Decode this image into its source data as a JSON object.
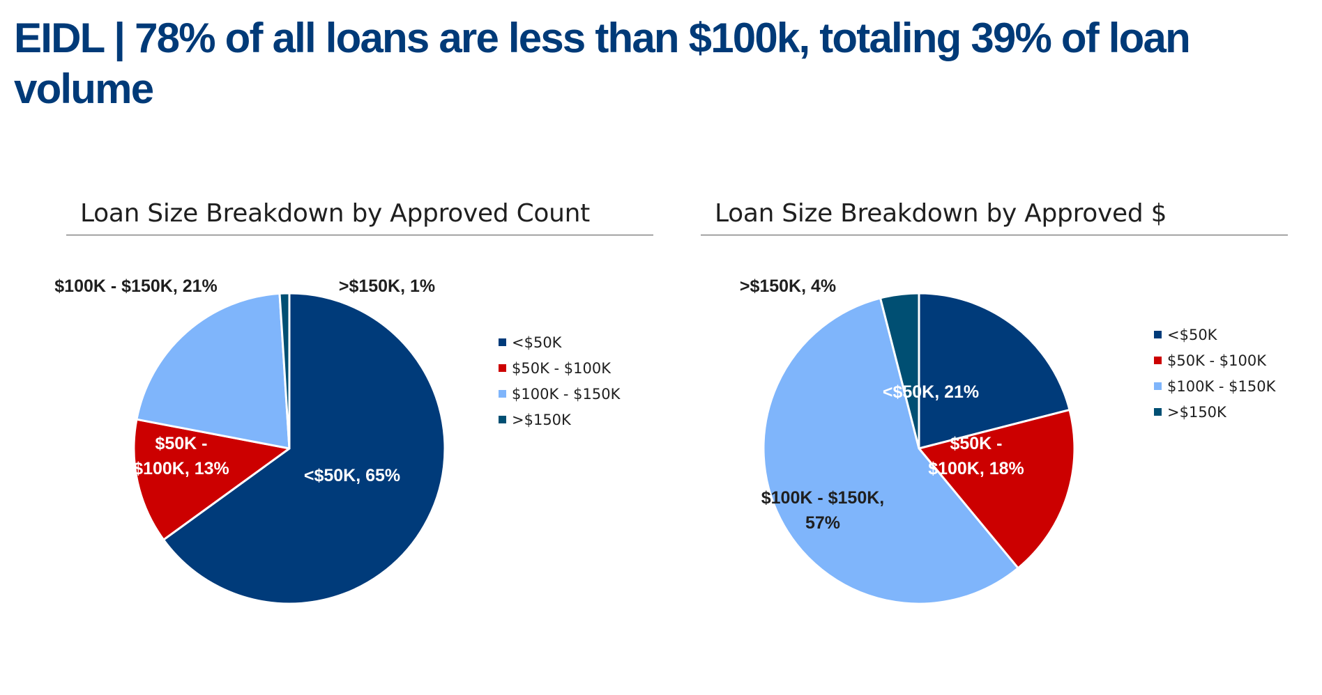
{
  "page": {
    "title": "EIDL | 78% of all loans are less than $100k, totaling 39% of loan volume"
  },
  "chart_data": [
    {
      "type": "pie",
      "title": "Loan Size Breakdown by Approved Count",
      "categories": [
        "<$50K",
        "$50K - $100K",
        "$100K - $150K",
        ">$150K"
      ],
      "values": [
        65,
        13,
        21,
        1
      ],
      "unit": "%",
      "data_labels": [
        {
          "lines": [
            "<$50K, 65%"
          ],
          "color": "#ffffff"
        },
        {
          "lines": [
            "$50K -",
            "$100K, 13%"
          ],
          "color": "#ffffff"
        },
        {
          "lines": [
            "$100K - $150K, 21%"
          ],
          "color": "#1f1f1f"
        },
        {
          "lines": [
            ">$150K, 1%"
          ],
          "color": "#1f1f1f"
        }
      ],
      "colors": [
        "#003b7a",
        "#cc0000",
        "#7fb5fb",
        "#004f73"
      ],
      "legend": "right"
    },
    {
      "type": "pie",
      "title": "Loan Size Breakdown by Approved $",
      "categories": [
        "<$50K",
        "$50K - $100K",
        "$100K - $150K",
        ">$150K"
      ],
      "values": [
        21,
        18,
        57,
        4
      ],
      "unit": "%",
      "data_labels": [
        {
          "lines": [
            "<$50K, 21%"
          ],
          "color": "#ffffff"
        },
        {
          "lines": [
            "$50K -",
            "$100K, 18%"
          ],
          "color": "#ffffff"
        },
        {
          "lines": [
            "$100K - $150K,",
            "57%"
          ],
          "color": "#1f1f1f"
        },
        {
          "lines": [
            ">$150K, 4%"
          ],
          "color": "#1f1f1f"
        }
      ],
      "colors": [
        "#003b7a",
        "#cc0000",
        "#7fb5fb",
        "#004f73"
      ],
      "legend": "right"
    }
  ]
}
